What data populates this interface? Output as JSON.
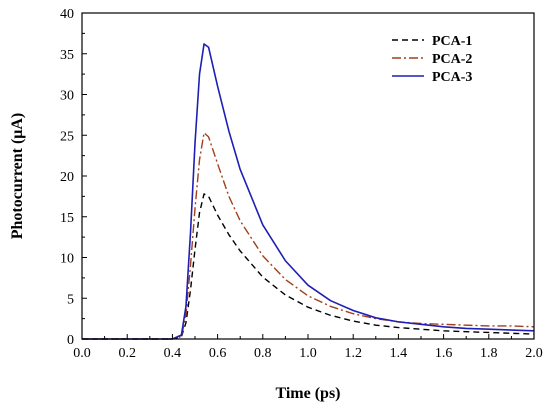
{
  "chart_data": {
    "type": "line",
    "title": "",
    "xlabel": "Time (ps)",
    "ylabel": "Photocurrent (μA)",
    "xlim": [
      0.0,
      2.0
    ],
    "ylim": [
      0,
      40
    ],
    "xticks": [
      "0.0",
      "0.2",
      "0.4",
      "0.6",
      "0.8",
      "1.0",
      "1.2",
      "1.4",
      "1.6",
      "1.8",
      "2.0"
    ],
    "yticks": [
      "0",
      "5",
      "10",
      "15",
      "20",
      "25",
      "30",
      "35",
      "40"
    ],
    "grid": false,
    "legend_position": "top-right",
    "series": [
      {
        "name": "PCA-1",
        "color": "#000000",
        "style": "dashed",
        "points": [
          [
            0.0,
            0
          ],
          [
            0.1,
            0
          ],
          [
            0.2,
            0
          ],
          [
            0.3,
            0
          ],
          [
            0.4,
            0
          ],
          [
            0.44,
            0.3
          ],
          [
            0.46,
            2
          ],
          [
            0.48,
            6
          ],
          [
            0.5,
            11
          ],
          [
            0.52,
            15.5
          ],
          [
            0.54,
            17.8
          ],
          [
            0.56,
            17.5
          ],
          [
            0.6,
            15.2
          ],
          [
            0.65,
            12.8
          ],
          [
            0.7,
            10.8
          ],
          [
            0.8,
            7.6
          ],
          [
            0.9,
            5.4
          ],
          [
            1.0,
            3.9
          ],
          [
            1.1,
            2.9
          ],
          [
            1.2,
            2.2
          ],
          [
            1.3,
            1.7
          ],
          [
            1.4,
            1.4
          ],
          [
            1.5,
            1.2
          ],
          [
            1.6,
            1.0
          ],
          [
            1.7,
            0.9
          ],
          [
            1.8,
            0.8
          ],
          [
            1.9,
            0.7
          ],
          [
            2.0,
            0.6
          ]
        ]
      },
      {
        "name": "PCA-2",
        "color": "#a0401c",
        "style": "dash-dot",
        "points": [
          [
            0.0,
            0
          ],
          [
            0.1,
            0
          ],
          [
            0.2,
            0
          ],
          [
            0.3,
            0
          ],
          [
            0.4,
            0
          ],
          [
            0.44,
            0.3
          ],
          [
            0.46,
            3
          ],
          [
            0.48,
            9
          ],
          [
            0.5,
            16
          ],
          [
            0.52,
            22
          ],
          [
            0.54,
            25.3
          ],
          [
            0.56,
            24.8
          ],
          [
            0.6,
            21.5
          ],
          [
            0.65,
            17.5
          ],
          [
            0.7,
            14.5
          ],
          [
            0.8,
            10.2
          ],
          [
            0.9,
            7.3
          ],
          [
            1.0,
            5.3
          ],
          [
            1.1,
            4.0
          ],
          [
            1.2,
            3.1
          ],
          [
            1.3,
            2.5
          ],
          [
            1.4,
            2.1
          ],
          [
            1.5,
            1.9
          ],
          [
            1.6,
            1.8
          ],
          [
            1.7,
            1.7
          ],
          [
            1.8,
            1.6
          ],
          [
            1.9,
            1.6
          ],
          [
            2.0,
            1.5
          ]
        ]
      },
      {
        "name": "PCA-3",
        "color": "#1f1fb4",
        "style": "solid",
        "points": [
          [
            0.0,
            0
          ],
          [
            0.1,
            0
          ],
          [
            0.2,
            0
          ],
          [
            0.3,
            0
          ],
          [
            0.4,
            0
          ],
          [
            0.44,
            0.5
          ],
          [
            0.46,
            4
          ],
          [
            0.48,
            13
          ],
          [
            0.5,
            24
          ],
          [
            0.52,
            32.5
          ],
          [
            0.54,
            36.2
          ],
          [
            0.56,
            35.8
          ],
          [
            0.6,
            31
          ],
          [
            0.65,
            25.5
          ],
          [
            0.7,
            20.8
          ],
          [
            0.8,
            14.0
          ],
          [
            0.9,
            9.6
          ],
          [
            1.0,
            6.6
          ],
          [
            1.1,
            4.7
          ],
          [
            1.2,
            3.5
          ],
          [
            1.3,
            2.6
          ],
          [
            1.4,
            2.1
          ],
          [
            1.5,
            1.8
          ],
          [
            1.6,
            1.5
          ],
          [
            1.7,
            1.3
          ],
          [
            1.8,
            1.2
          ],
          [
            1.9,
            1.1
          ],
          [
            2.0,
            1.0
          ]
        ]
      }
    ]
  }
}
